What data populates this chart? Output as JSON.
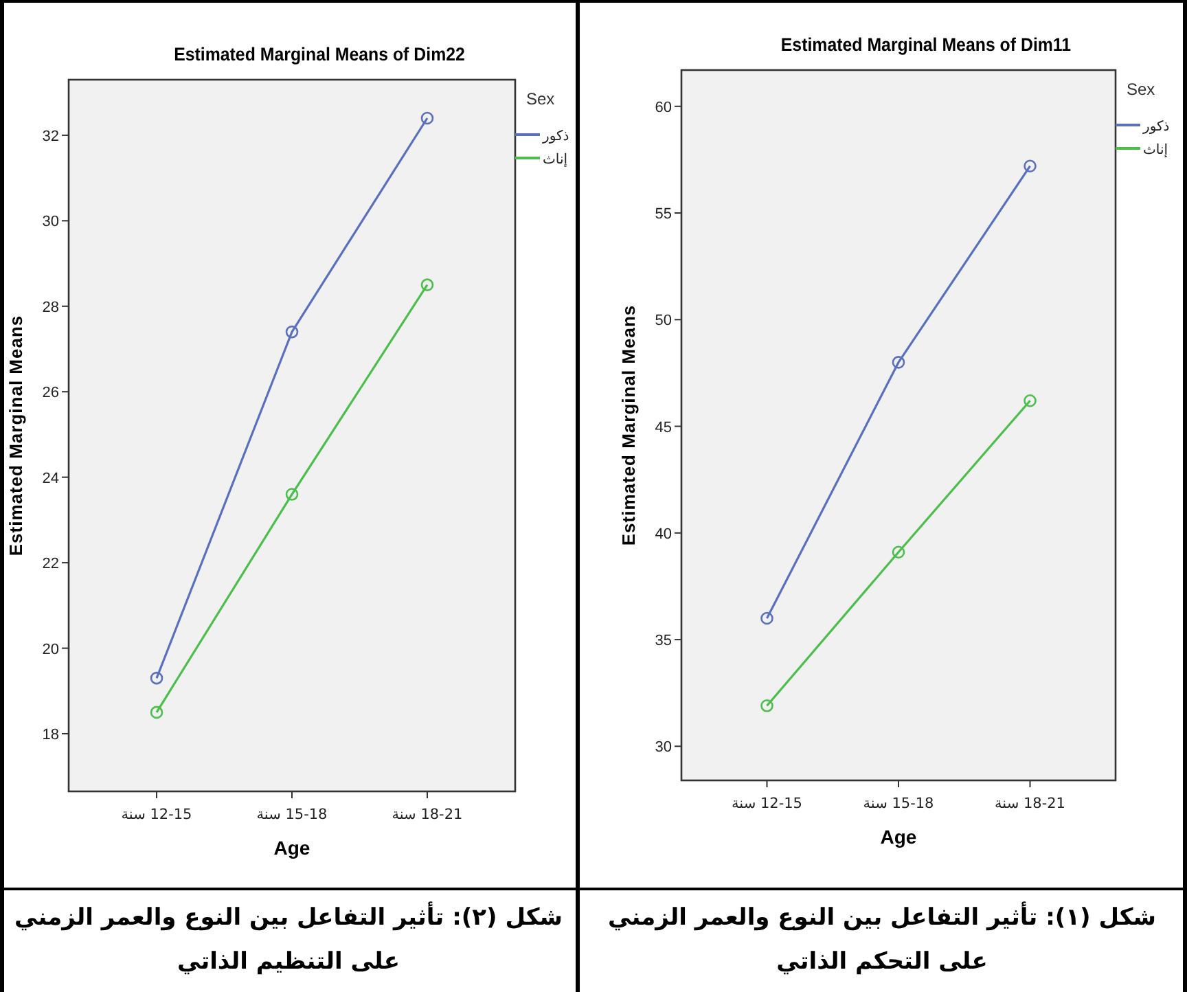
{
  "chart_data": [
    {
      "type": "line",
      "title": "Estimated Marginal Means of Dim22",
      "xlabel": "Age",
      "ylabel": "Estimated Marginal Means",
      "legend_title": "Sex",
      "legend": "right",
      "marker": "circle",
      "categories": [
        "12-15 سنة",
        "15-18 سنة",
        "18-21 سنة"
      ],
      "series": [
        {
          "name": "ذكور",
          "color": "#5b6fbf",
          "values": [
            19.3,
            27.4,
            32.4
          ]
        },
        {
          "name": "إناث",
          "color": "#4cbe4c",
          "values": [
            18.5,
            23.6,
            28.5
          ]
        }
      ],
      "ylim": [
        16.65,
        33.3
      ],
      "yticks": [
        18,
        20,
        22,
        24,
        26,
        28,
        30,
        32
      ],
      "annotations": [
        "شكل (٢): تأثير التفاعل بين النوع والعمر الزمني على التنظيم الذاتي"
      ]
    },
    {
      "type": "line",
      "title": "Estimated Marginal Means of Dim11",
      "xlabel": "Age",
      "ylabel": "Estimated Marginal Means",
      "legend_title": "Sex",
      "legend": "right",
      "marker": "circle",
      "categories": [
        "12-15 سنة",
        "15-18 سنة",
        "18-21 سنة"
      ],
      "series": [
        {
          "name": "ذكور",
          "color": "#5b6fbf",
          "values": [
            36.0,
            48.0,
            57.2
          ]
        },
        {
          "name": "إناث",
          "color": "#4cbe4c",
          "values": [
            31.9,
            39.1,
            46.2
          ]
        }
      ],
      "ylim": [
        28.4,
        61.7
      ],
      "yticks": [
        30,
        35,
        40,
        45,
        50,
        55,
        60
      ],
      "annotations": [
        "شكل (١): تأثير التفاعل بين النوع والعمر الزمني على التحكم الذاتي"
      ]
    }
  ]
}
